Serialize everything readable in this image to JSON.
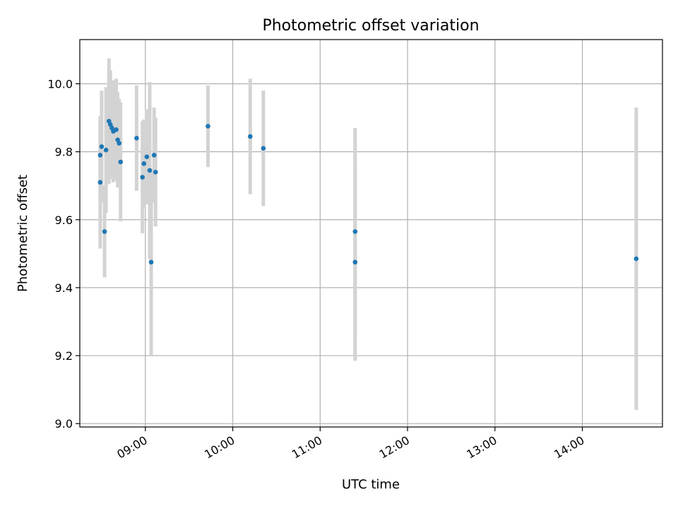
{
  "chart_data": {
    "type": "scatter",
    "title": "Photometric offset variation",
    "xlabel": "UTC time",
    "ylabel": "Photometric offset",
    "xlim": [
      "08:15",
      "14:55"
    ],
    "ylim": [
      8.99,
      10.13
    ],
    "xticks": [
      "09:00",
      "10:00",
      "11:00",
      "12:00",
      "13:00",
      "14:00"
    ],
    "yticks": [
      "9.0",
      "9.2",
      "9.4",
      "9.6",
      "9.8",
      "10.0"
    ],
    "grid": true,
    "marker_color": "#1f77b4",
    "errorbar_color": "#d3d3d3",
    "points": [
      {
        "x": "08:29",
        "y": 9.71,
        "err": 0.195
      },
      {
        "x": "08:29",
        "y": 9.79,
        "err": 0.11
      },
      {
        "x": "08:30",
        "y": 9.815,
        "err": 0.165
      },
      {
        "x": "08:32",
        "y": 9.565,
        "err": 0.135
      },
      {
        "x": "08:33",
        "y": 9.805,
        "err": 0.185
      },
      {
        "x": "08:35",
        "y": 9.89,
        "err": 0.185
      },
      {
        "x": "08:36",
        "y": 9.88,
        "err": 0.16
      },
      {
        "x": "08:37",
        "y": 9.87,
        "err": 0.14
      },
      {
        "x": "08:38",
        "y": 9.86,
        "err": 0.15
      },
      {
        "x": "08:40",
        "y": 9.865,
        "err": 0.15
      },
      {
        "x": "08:41",
        "y": 9.835,
        "err": 0.14
      },
      {
        "x": "08:42",
        "y": 9.825,
        "err": 0.13
      },
      {
        "x": "08:43",
        "y": 9.77,
        "err": 0.175
      },
      {
        "x": "08:54",
        "y": 9.84,
        "err": 0.155
      },
      {
        "x": "08:58",
        "y": 9.725,
        "err": 0.165
      },
      {
        "x": "08:59",
        "y": 9.765,
        "err": 0.13
      },
      {
        "x": "09:01",
        "y": 9.785,
        "err": 0.14
      },
      {
        "x": "09:03",
        "y": 9.745,
        "err": 0.26
      },
      {
        "x": "09:04",
        "y": 9.475,
        "err": 0.275
      },
      {
        "x": "09:06",
        "y": 9.79,
        "err": 0.14
      },
      {
        "x": "09:07",
        "y": 9.74,
        "err": 0.16
      },
      {
        "x": "09:43",
        "y": 9.875,
        "err": 0.12
      },
      {
        "x": "10:12",
        "y": 9.845,
        "err": 0.17
      },
      {
        "x": "10:21",
        "y": 9.81,
        "err": 0.17
      },
      {
        "x": "11:24",
        "y": 9.565,
        "err": 0.305
      },
      {
        "x": "11:24",
        "y": 9.475,
        "err": 0.29
      },
      {
        "x": "14:37",
        "y": 9.485,
        "err": 0.445
      }
    ]
  }
}
